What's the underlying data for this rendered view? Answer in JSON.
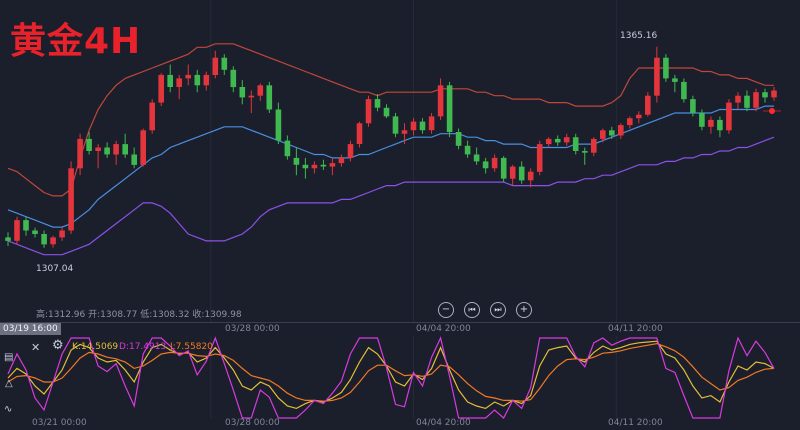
{
  "header": {
    "title": "黄金4H"
  },
  "info_bar": {
    "text": "高:1312.96 开:1308.77 低:1308.32 收:1309.98"
  },
  "markers": {
    "high": "1365.16",
    "low": "1307.04"
  },
  "controls": {
    "zoom_out": "−",
    "prev": "⏮",
    "next": "⏭",
    "zoom_in": "+"
  },
  "indicator": {
    "k": "K:14.5069",
    "d": "D:17.4913",
    "j": "J:7.55820",
    "close": "✕"
  },
  "cursor_time": "03/19 16:00",
  "time_labels": {
    "main": [
      "03/28 00:00",
      "04/04 20:00",
      "04/11 20:00"
    ],
    "sub": [
      "03/21 00:00",
      "03/28 00:00",
      "04/04 20:00",
      "04/11 20:00"
    ]
  },
  "colors": {
    "background": "#1b1e2b",
    "up": "#e2353c",
    "down": "#3fb950",
    "middle_band": "#4a8fe0",
    "upper_band": "#c0483a",
    "lower_band": "#8a52e8",
    "k_line": "#e3be3a",
    "d_line": "#f07a25",
    "j_line": "#d83ae0"
  },
  "chart_data": {
    "type": "candlestick",
    "title": "黄金4H",
    "indicator_main": "Bollinger Bands",
    "indicator_sub": "KDJ",
    "high_marker": 1365.16,
    "low_marker": 1307.04,
    "last_bar": {
      "high": 1312.96,
      "open": 1308.77,
      "low": 1308.32,
      "close": 1309.98
    },
    "candles": [
      [
        1310.0,
        1311.5,
        1307.5,
        1309.0
      ],
      [
        1309.0,
        1316.0,
        1308.0,
        1315.0
      ],
      [
        1315.0,
        1316.0,
        1310.5,
        1312.0
      ],
      [
        1312.0,
        1312.8,
        1310.0,
        1311.0
      ],
      [
        1311.0,
        1312.0,
        1307.0,
        1308.0
      ],
      [
        1308.0,
        1310.5,
        1307.04,
        1310.0
      ],
      [
        1310.0,
        1313.0,
        1309.0,
        1312.0
      ],
      [
        1312.0,
        1332.0,
        1311.0,
        1330.0
      ],
      [
        1330.0,
        1340.0,
        1328.0,
        1338.5
      ],
      [
        1338.5,
        1340.5,
        1334.0,
        1335.0
      ],
      [
        1335.0,
        1337.0,
        1330.0,
        1336.0
      ],
      [
        1336.0,
        1337.5,
        1333.0,
        1334.0
      ],
      [
        1334.0,
        1338.0,
        1331.0,
        1337.0
      ],
      [
        1337.0,
        1340.0,
        1333.0,
        1334.0
      ],
      [
        1334.0,
        1336.0,
        1330.0,
        1331.0
      ],
      [
        1331.0,
        1341.5,
        1330.5,
        1341.0
      ],
      [
        1341.0,
        1350.0,
        1340.0,
        1349.0
      ],
      [
        1349.0,
        1357.5,
        1348.0,
        1357.0
      ],
      [
        1357.0,
        1360.0,
        1352.0,
        1353.5
      ],
      [
        1353.5,
        1357.0,
        1350.0,
        1356.0
      ],
      [
        1356.0,
        1360.0,
        1354.0,
        1357.0
      ],
      [
        1357.0,
        1358.5,
        1352.0,
        1354.0
      ],
      [
        1354.0,
        1358.0,
        1352.5,
        1357.0
      ],
      [
        1357.0,
        1364.0,
        1356.0,
        1362.0
      ],
      [
        1362.0,
        1363.0,
        1357.0,
        1358.5
      ],
      [
        1358.5,
        1359.5,
        1352.0,
        1353.5
      ],
      [
        1353.5,
        1355.5,
        1348.5,
        1350.5
      ],
      [
        1350.5,
        1352.5,
        1346.0,
        1351.0
      ],
      [
        1351.0,
        1354.5,
        1349.5,
        1354.0
      ],
      [
        1354.0,
        1355.0,
        1346.0,
        1347.0
      ],
      [
        1347.0,
        1349.0,
        1337.0,
        1338.0
      ],
      [
        1338.0,
        1339.5,
        1332.5,
        1333.5
      ],
      [
        1333.0,
        1336.0,
        1328.0,
        1331.0
      ],
      [
        1331.0,
        1333.0,
        1327.0,
        1330.0
      ],
      [
        1330.0,
        1332.0,
        1328.5,
        1331.0
      ],
      [
        1331.0,
        1332.5,
        1329.5,
        1330.5
      ],
      [
        1330.5,
        1333.0,
        1328.0,
        1331.5
      ],
      [
        1331.5,
        1334.0,
        1330.5,
        1333.0
      ],
      [
        1333.0,
        1338.0,
        1332.0,
        1337.0
      ],
      [
        1337.0,
        1343.5,
        1336.0,
        1343.0
      ],
      [
        1343.0,
        1351.0,
        1342.0,
        1350.0
      ],
      [
        1350.0,
        1351.5,
        1346.5,
        1347.5
      ],
      [
        1347.5,
        1348.5,
        1344.5,
        1345.0
      ],
      [
        1345.0,
        1346.0,
        1339.0,
        1340.0
      ],
      [
        1340.0,
        1343.0,
        1337.0,
        1341.0
      ],
      [
        1341.0,
        1344.5,
        1339.5,
        1343.5
      ],
      [
        1343.5,
        1344.5,
        1340.0,
        1341.0
      ],
      [
        1341.0,
        1346.0,
        1340.0,
        1345.0
      ],
      [
        1345.0,
        1356.0,
        1344.0,
        1354.0
      ],
      [
        1354.0,
        1355.0,
        1339.0,
        1340.5
      ],
      [
        1340.5,
        1341.5,
        1335.5,
        1336.5
      ],
      [
        1336.5,
        1338.0,
        1333.0,
        1334.0
      ],
      [
        1334.0,
        1336.0,
        1331.0,
        1332.0
      ],
      [
        1332.0,
        1333.0,
        1328.5,
        1330.0
      ],
      [
        1330.0,
        1334.0,
        1329.0,
        1333.0
      ],
      [
        1333.0,
        1333.5,
        1326.0,
        1327.0
      ],
      [
        1327.0,
        1331.0,
        1325.0,
        1330.5
      ],
      [
        1330.5,
        1332.0,
        1325.5,
        1326.5
      ],
      [
        1326.5,
        1330.0,
        1324.5,
        1329.0
      ],
      [
        1329.0,
        1338.0,
        1328.0,
        1337.0
      ],
      [
        1337.0,
        1339.0,
        1336.0,
        1338.5
      ],
      [
        1338.5,
        1339.5,
        1336.5,
        1337.5
      ],
      [
        1337.5,
        1340.0,
        1336.5,
        1339.0
      ],
      [
        1339.0,
        1340.0,
        1334.0,
        1335.0
      ],
      [
        1335.0,
        1336.0,
        1331.0,
        1334.5
      ],
      [
        1334.5,
        1339.0,
        1333.5,
        1338.5
      ],
      [
        1338.5,
        1341.5,
        1337.5,
        1341.0
      ],
      [
        1341.0,
        1342.0,
        1338.5,
        1339.5
      ],
      [
        1339.5,
        1343.0,
        1338.5,
        1342.5
      ],
      [
        1342.5,
        1345.0,
        1341.5,
        1344.5
      ],
      [
        1344.5,
        1346.5,
        1343.0,
        1345.5
      ],
      [
        1345.5,
        1352.0,
        1345.0,
        1351.0
      ],
      [
        1351.0,
        1365.16,
        1349.0,
        1362.0
      ],
      [
        1362.0,
        1363.0,
        1355.0,
        1356.0
      ],
      [
        1356.0,
        1357.0,
        1352.0,
        1355.0
      ],
      [
        1355.0,
        1356.0,
        1349.0,
        1350.0
      ],
      [
        1350.0,
        1351.0,
        1345.0,
        1346.0
      ],
      [
        1346.0,
        1347.0,
        1341.0,
        1342.0
      ],
      [
        1342.0,
        1345.0,
        1340.0,
        1344.0
      ],
      [
        1344.0,
        1345.0,
        1339.0,
        1341.0
      ],
      [
        1341.0,
        1350.0,
        1340.0,
        1349.0
      ],
      [
        1349.0,
        1352.0,
        1347.0,
        1351.0
      ],
      [
        1351.0,
        1352.5,
        1346.5,
        1347.5
      ],
      [
        1347.5,
        1353.0,
        1346.5,
        1352.0
      ],
      [
        1352.0,
        1353.0,
        1349.0,
        1350.5
      ],
      [
        1350.5,
        1353.5,
        1349.5,
        1352.5
      ]
    ],
    "boll": {
      "upper": [
        1330,
        1329,
        1327,
        1325,
        1323,
        1322,
        1322,
        1324,
        1333,
        1341,
        1347,
        1351,
        1354,
        1356,
        1357,
        1358,
        1359,
        1360,
        1361,
        1362,
        1363,
        1365,
        1365,
        1366,
        1366,
        1366,
        1365,
        1364,
        1363,
        1362,
        1361,
        1360,
        1359,
        1358,
        1357,
        1356,
        1355,
        1354,
        1353,
        1352,
        1352,
        1351,
        1352,
        1352,
        1352,
        1352,
        1352,
        1352,
        1353,
        1353,
        1353,
        1353,
        1352,
        1352,
        1351,
        1351,
        1350,
        1350,
        1350,
        1350,
        1349,
        1349,
        1349,
        1348,
        1348,
        1348,
        1348,
        1349,
        1351,
        1356,
        1359,
        1359,
        1359,
        1359,
        1359,
        1359,
        1359,
        1358,
        1358,
        1357,
        1357,
        1356,
        1356,
        1355,
        1354,
        1354
      ],
      "middle": [
        1318,
        1317,
        1316,
        1315,
        1314,
        1313,
        1313,
        1314,
        1316,
        1318,
        1321,
        1323,
        1325,
        1327,
        1329,
        1331,
        1333,
        1334,
        1336,
        1337,
        1338,
        1339,
        1340,
        1341,
        1342,
        1342,
        1342,
        1341,
        1340,
        1339,
        1338,
        1337,
        1336,
        1335,
        1334,
        1334,
        1333,
        1333,
        1333,
        1334,
        1334,
        1335,
        1336,
        1337,
        1338,
        1339,
        1339,
        1339,
        1340,
        1340,
        1340,
        1339,
        1339,
        1338,
        1338,
        1337,
        1337,
        1337,
        1336,
        1336,
        1336,
        1336,
        1336,
        1337,
        1337,
        1337,
        1338,
        1339,
        1340,
        1341,
        1342,
        1343,
        1344,
        1345,
        1346,
        1346,
        1346,
        1346,
        1346,
        1347,
        1347,
        1347,
        1347,
        1347,
        1348,
        1348
      ],
      "lower": [
        1309,
        1308,
        1307,
        1306,
        1305,
        1305,
        1305,
        1306,
        1307,
        1308,
        1310,
        1312,
        1314,
        1316,
        1318,
        1320,
        1320,
        1319,
        1317,
        1314,
        1311,
        1310,
        1309,
        1309,
        1309,
        1310,
        1311,
        1313,
        1316,
        1318,
        1319,
        1320,
        1320,
        1320,
        1320,
        1320,
        1320,
        1321,
        1321,
        1322,
        1323,
        1324,
        1325,
        1325,
        1326,
        1326,
        1326,
        1326,
        1326,
        1326,
        1326,
        1326,
        1326,
        1326,
        1326,
        1326,
        1325,
        1325,
        1325,
        1325,
        1325,
        1326,
        1326,
        1326,
        1327,
        1327,
        1328,
        1328,
        1329,
        1330,
        1331,
        1331,
        1331,
        1332,
        1332,
        1333,
        1333,
        1334,
        1334,
        1335,
        1335,
        1336,
        1336,
        1337,
        1338,
        1339
      ]
    },
    "kdj": {
      "k": [
        50,
        62,
        55,
        40,
        30,
        45,
        60,
        85,
        92,
        88,
        75,
        70,
        72,
        60,
        45,
        70,
        88,
        92,
        85,
        80,
        82,
        70,
        75,
        88,
        75,
        60,
        40,
        35,
        45,
        40,
        25,
        15,
        12,
        18,
        22,
        20,
        25,
        32,
        48,
        70,
        88,
        80,
        65,
        45,
        40,
        55,
        48,
        62,
        88,
        60,
        35,
        20,
        15,
        12,
        20,
        15,
        22,
        18,
        28,
        65,
        85,
        88,
        90,
        75,
        70,
        82,
        90,
        85,
        88,
        92,
        94,
        95,
        96,
        80,
        75,
        60,
        40,
        25,
        28,
        20,
        45,
        65,
        60,
        70,
        68,
        62
      ],
      "d": [
        45,
        52,
        53,
        50,
        45,
        45,
        50,
        62,
        75,
        82,
        80,
        76,
        74,
        70,
        62,
        65,
        72,
        80,
        82,
        81,
        81,
        78,
        77,
        80,
        78,
        72,
        62,
        53,
        50,
        47,
        40,
        31,
        25,
        22,
        22,
        21,
        22,
        25,
        32,
        45,
        59,
        66,
        66,
        59,
        53,
        54,
        52,
        55,
        66,
        64,
        54,
        43,
        34,
        27,
        25,
        22,
        22,
        21,
        23,
        37,
        53,
        65,
        73,
        74,
        73,
        76,
        81,
        82,
        84,
        87,
        89,
        91,
        93,
        89,
        84,
        76,
        64,
        51,
        43,
        35,
        38,
        47,
        51,
        57,
        61,
        62
      ],
      "j": [
        55,
        80,
        60,
        25,
        10,
        45,
        80,
        100,
        100,
        100,
        65,
        58,
        68,
        40,
        15,
        80,
        100,
        100,
        90,
        78,
        84,
        54,
        71,
        100,
        68,
        35,
        0,
        0,
        35,
        26,
        0,
        0,
        0,
        10,
        22,
        18,
        31,
        46,
        80,
        100,
        100,
        100,
        63,
        17,
        14,
        57,
        40,
        76,
        100,
        52,
        0,
        0,
        0,
        0,
        10,
        0,
        22,
        12,
        38,
        100,
        100,
        100,
        100,
        77,
        64,
        94,
        100,
        91,
        96,
        100,
        100,
        100,
        100,
        62,
        57,
        28,
        0,
        0,
        0,
        0,
        59,
        100,
        78,
        96,
        82,
        62
      ]
    }
  }
}
